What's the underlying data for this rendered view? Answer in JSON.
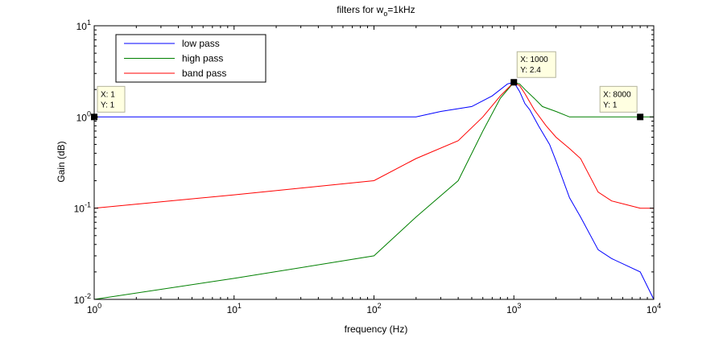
{
  "chart_data": {
    "type": "line",
    "title": {
      "prefix": "filters for w",
      "subscript": "o",
      "suffix": "=1kHz"
    },
    "xlabel": "frequency (Hz)",
    "ylabel": "Gain (dB)",
    "xscale": "log",
    "yscale": "log",
    "xlim": [
      1,
      10000
    ],
    "ylim": [
      0.01,
      10
    ],
    "x_ticks": [
      {
        "value": 1,
        "base": "10",
        "exp": "0"
      },
      {
        "value": 10,
        "base": "10",
        "exp": "1"
      },
      {
        "value": 100,
        "base": "10",
        "exp": "2"
      },
      {
        "value": 1000,
        "base": "10",
        "exp": "3"
      },
      {
        "value": 10000,
        "base": "10",
        "exp": "4"
      }
    ],
    "y_ticks": [
      {
        "value": 0.01,
        "base": "10",
        "exp": "-2"
      },
      {
        "value": 0.1,
        "base": "10",
        "exp": "-1"
      },
      {
        "value": 1,
        "base": "10",
        "exp": "0"
      },
      {
        "value": 10,
        "base": "10",
        "exp": "1"
      }
    ],
    "grid": false,
    "legend_position": "top-left",
    "series": [
      {
        "name": "low pass",
        "color": "#0000ff",
        "points": [
          [
            1,
            1
          ],
          [
            10,
            1
          ],
          [
            100,
            1
          ],
          [
            200,
            1
          ],
          [
            300,
            1.15
          ],
          [
            500,
            1.3
          ],
          [
            700,
            1.7
          ],
          [
            900,
            2.3
          ],
          [
            1000,
            2.4
          ],
          [
            1100,
            1.9
          ],
          [
            1200,
            1.4
          ],
          [
            1300,
            1.2
          ],
          [
            1500,
            0.8
          ],
          [
            1800,
            0.5
          ],
          [
            2000,
            0.33
          ],
          [
            2500,
            0.13
          ],
          [
            3000,
            0.08
          ],
          [
            4000,
            0.035
          ],
          [
            5000,
            0.028
          ],
          [
            8000,
            0.02
          ],
          [
            10000,
            0.01
          ]
        ]
      },
      {
        "name": "high pass",
        "color": "#008000",
        "points": [
          [
            1,
            0.01
          ],
          [
            10,
            0.017
          ],
          [
            100,
            0.03
          ],
          [
            200,
            0.08
          ],
          [
            400,
            0.2
          ],
          [
            600,
            0.7
          ],
          [
            800,
            1.6
          ],
          [
            1000,
            2.4
          ],
          [
            1100,
            2.3
          ],
          [
            1200,
            2.0
          ],
          [
            1400,
            1.6
          ],
          [
            1600,
            1.3
          ],
          [
            2000,
            1.15
          ],
          [
            2500,
            1.0
          ],
          [
            4000,
            1.0
          ],
          [
            8000,
            1.0
          ],
          [
            10000,
            1.0
          ]
        ]
      },
      {
        "name": "band pass",
        "color": "#ff0000",
        "points": [
          [
            1,
            0.1
          ],
          [
            10,
            0.14
          ],
          [
            100,
            0.2
          ],
          [
            200,
            0.35
          ],
          [
            400,
            0.55
          ],
          [
            600,
            1.0
          ],
          [
            800,
            1.7
          ],
          [
            1000,
            2.4
          ],
          [
            1100,
            2.2
          ],
          [
            1200,
            1.8
          ],
          [
            1400,
            1.2
          ],
          [
            1700,
            0.8
          ],
          [
            2000,
            0.6
          ],
          [
            2500,
            0.45
          ],
          [
            3000,
            0.35
          ],
          [
            4000,
            0.15
          ],
          [
            5000,
            0.12
          ],
          [
            8000,
            0.1
          ],
          [
            10000,
            0.1
          ]
        ]
      }
    ],
    "datatips": [
      {
        "x": 1,
        "y": 1,
        "line1": "X: 1",
        "line2": "Y: 1"
      },
      {
        "x": 1000,
        "y": 2.4,
        "line1": "X: 1000",
        "line2": "Y: 2.4"
      },
      {
        "x": 8000,
        "y": 1,
        "line1": "X: 8000",
        "line2": "Y: 1"
      }
    ]
  }
}
